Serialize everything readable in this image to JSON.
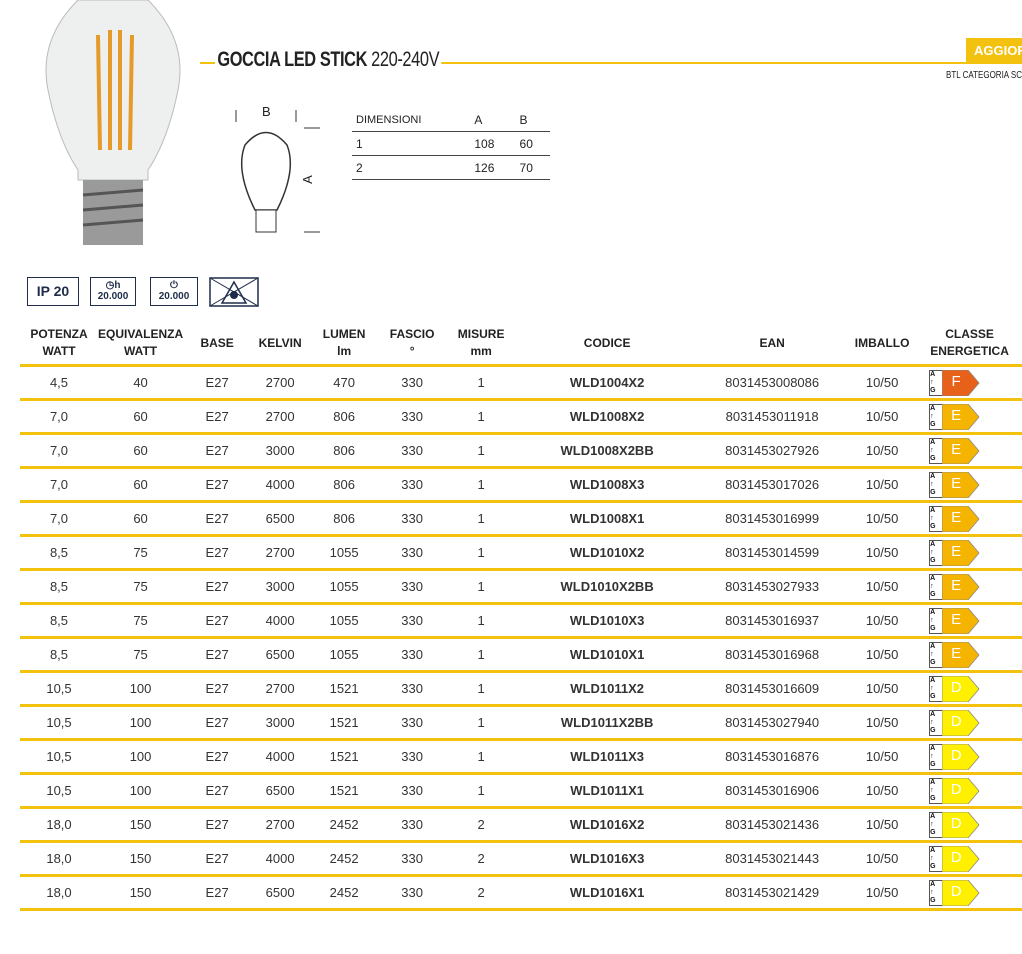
{
  "title": {
    "bold": "GOCCIA LED STICK",
    "voltage": "220-240V"
  },
  "badge": "AGGIORN",
  "category": "BTL CATEGORIA SCO",
  "diagram": {
    "label_a": "A",
    "label_b": "B"
  },
  "dimensions": {
    "headers": [
      "DIMENSIONI",
      "A",
      "B"
    ],
    "rows": [
      [
        "1",
        "108",
        "60"
      ],
      [
        "2",
        "126",
        "70"
      ]
    ]
  },
  "icons": {
    "ip": "IP 20",
    "hours": "20.000",
    "hours_unit": "h",
    "cycles": "20.000"
  },
  "colors": {
    "accent": "#f2c20f",
    "F": "#e8611a",
    "E": "#f4b400",
    "D": "#fff000"
  },
  "table": {
    "headers": [
      "POTENZA\nWATT",
      "EQUIVALENZA\nWATT",
      "BASE",
      "KELVIN",
      "LUMEN\nlm",
      "FASCIO\n°",
      "MISURE\nmm",
      "CODICE",
      "EAN",
      "IMBALLO",
      "CLASSE\nENERGETICA"
    ],
    "scale": [
      "A",
      "↑",
      "G"
    ],
    "rows": [
      [
        "4,5",
        "40",
        "E27",
        "2700",
        "470",
        "330",
        "1",
        "WLD1004X2",
        "8031453008086",
        "10/50",
        "F"
      ],
      [
        "7,0",
        "60",
        "E27",
        "2700",
        "806",
        "330",
        "1",
        "WLD1008X2",
        "8031453011918",
        "10/50",
        "E"
      ],
      [
        "7,0",
        "60",
        "E27",
        "3000",
        "806",
        "330",
        "1",
        "WLD1008X2BB",
        "8031453027926",
        "10/50",
        "E"
      ],
      [
        "7,0",
        "60",
        "E27",
        "4000",
        "806",
        "330",
        "1",
        "WLD1008X3",
        "8031453017026",
        "10/50",
        "E"
      ],
      [
        "7,0",
        "60",
        "E27",
        "6500",
        "806",
        "330",
        "1",
        "WLD1008X1",
        "8031453016999",
        "10/50",
        "E"
      ],
      [
        "8,5",
        "75",
        "E27",
        "2700",
        "1055",
        "330",
        "1",
        "WLD1010X2",
        "8031453014599",
        "10/50",
        "E"
      ],
      [
        "8,5",
        "75",
        "E27",
        "3000",
        "1055",
        "330",
        "1",
        "WLD1010X2BB",
        "8031453027933",
        "10/50",
        "E"
      ],
      [
        "8,5",
        "75",
        "E27",
        "4000",
        "1055",
        "330",
        "1",
        "WLD1010X3",
        "8031453016937",
        "10/50",
        "E"
      ],
      [
        "8,5",
        "75",
        "E27",
        "6500",
        "1055",
        "330",
        "1",
        "WLD1010X1",
        "8031453016968",
        "10/50",
        "E"
      ],
      [
        "10,5",
        "100",
        "E27",
        "2700",
        "1521",
        "330",
        "1",
        "WLD1011X2",
        "8031453016609",
        "10/50",
        "D"
      ],
      [
        "10,5",
        "100",
        "E27",
        "3000",
        "1521",
        "330",
        "1",
        "WLD1011X2BB",
        "8031453027940",
        "10/50",
        "D"
      ],
      [
        "10,5",
        "100",
        "E27",
        "4000",
        "1521",
        "330",
        "1",
        "WLD1011X3",
        "8031453016876",
        "10/50",
        "D"
      ],
      [
        "10,5",
        "100",
        "E27",
        "6500",
        "1521",
        "330",
        "1",
        "WLD1011X1",
        "8031453016906",
        "10/50",
        "D"
      ],
      [
        "18,0",
        "150",
        "E27",
        "2700",
        "2452",
        "330",
        "2",
        "WLD1016X2",
        "8031453021436",
        "10/50",
        "D"
      ],
      [
        "18,0",
        "150",
        "E27",
        "4000",
        "2452",
        "330",
        "2",
        "WLD1016X3",
        "8031453021443",
        "10/50",
        "D"
      ],
      [
        "18,0",
        "150",
        "E27",
        "6500",
        "2452",
        "330",
        "2",
        "WLD1016X1",
        "8031453021429",
        "10/50",
        "D"
      ]
    ]
  }
}
